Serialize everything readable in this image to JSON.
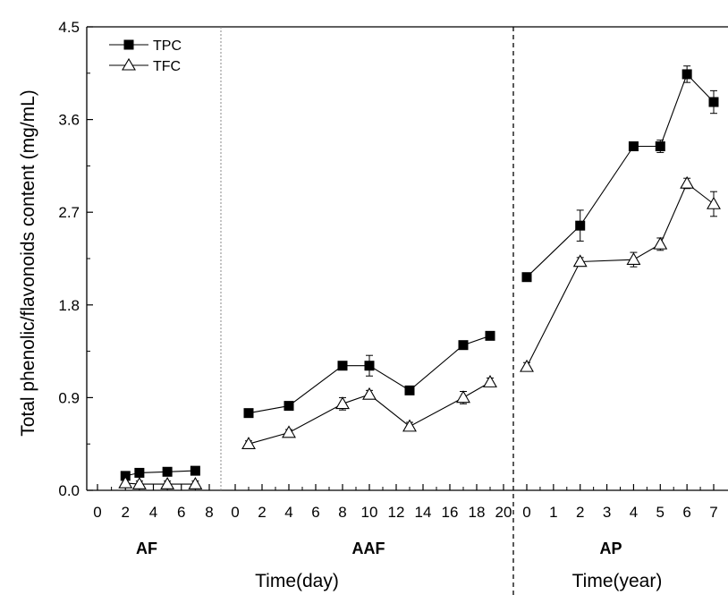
{
  "chart_data": {
    "type": "line",
    "ylabel": "Total phenolic/flavonoids content (mg/mL)",
    "ylim": [
      0,
      4.5
    ],
    "yticks": [
      "0.0",
      "0.9",
      "1.8",
      "2.7",
      "3.6",
      "4.5"
    ],
    "legend": {
      "position": "top-left",
      "entries": [
        "TPC",
        "TFC"
      ]
    },
    "xlabels": [
      "Time(day)",
      "Time(year)"
    ],
    "panels": [
      {
        "name": "AF",
        "xticks": [
          "0",
          "2",
          "4",
          "6",
          "8"
        ],
        "xlim": [
          0,
          8
        ],
        "series": [
          {
            "name": "TPC",
            "marker": "filled-square",
            "x": [
              2,
              3,
              5,
              7
            ],
            "y": [
              0.14,
              0.17,
              0.18,
              0.19
            ],
            "err": [
              0.02,
              0.02,
              0.02,
              0.02
            ]
          },
          {
            "name": "TFC",
            "marker": "open-triangle",
            "x": [
              2,
              3,
              5,
              7
            ],
            "y": [
              0.07,
              0.06,
              0.06,
              0.06
            ],
            "err": [
              0.03,
              0.03,
              0.03,
              0.03
            ]
          }
        ]
      },
      {
        "name": "AAF",
        "xticks": [
          "0",
          "2",
          "4",
          "6",
          "8",
          "10",
          "12",
          "14",
          "16",
          "18",
          "20"
        ],
        "xlim": [
          0,
          20
        ],
        "series": [
          {
            "name": "TPC",
            "marker": "filled-square",
            "x": [
              1,
              4,
              8,
              10,
              13,
              17,
              19
            ],
            "y": [
              0.75,
              0.82,
              1.21,
              1.21,
              0.97,
              1.41,
              1.5
            ],
            "err": [
              0.02,
              0.02,
              0.03,
              0.1,
              0.02,
              0.02,
              0.02
            ]
          },
          {
            "name": "TFC",
            "marker": "open-triangle",
            "x": [
              1,
              4,
              8,
              10,
              13,
              17,
              19
            ],
            "y": [
              0.45,
              0.56,
              0.84,
              0.93,
              0.62,
              0.9,
              1.05
            ],
            "err": [
              0.03,
              0.03,
              0.06,
              0.04,
              0.04,
              0.06,
              0.04
            ]
          }
        ]
      },
      {
        "name": "AP",
        "xticks": [
          "0",
          "1",
          "2",
          "3",
          "4",
          "5",
          "6",
          "7"
        ],
        "xlim": [
          -0.2,
          7.2
        ],
        "series": [
          {
            "name": "TPC",
            "marker": "filled-square",
            "x": [
              0,
              2,
              4,
              5,
              6,
              7
            ],
            "y": [
              2.07,
              2.57,
              3.34,
              3.34,
              4.04,
              3.77
            ],
            "err": [
              0.02,
              0.15,
              0.03,
              0.06,
              0.08,
              0.11
            ]
          },
          {
            "name": "TFC",
            "marker": "open-triangle",
            "x": [
              0,
              2,
              4,
              5,
              6,
              7
            ],
            "y": [
              1.2,
              2.22,
              2.24,
              2.39,
              2.98,
              2.78
            ],
            "err": [
              0.04,
              0.04,
              0.07,
              0.06,
              0.05,
              0.12
            ]
          }
        ]
      }
    ]
  }
}
